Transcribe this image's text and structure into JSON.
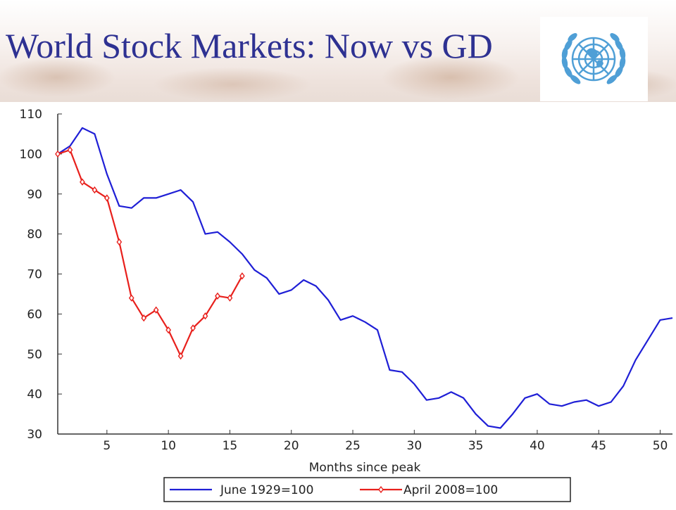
{
  "slide": {
    "title": "World Stock Markets: Now vs GD"
  },
  "logo": {
    "icon": "un-emblem-icon",
    "color": "#4f9fd6"
  },
  "chart_data": {
    "type": "line",
    "title": "",
    "xlabel": "Months since peak",
    "ylabel": "",
    "xlim": [
      1,
      51
    ],
    "ylim": [
      30,
      110
    ],
    "xticks": [
      5,
      10,
      15,
      20,
      25,
      30,
      35,
      40,
      45,
      50
    ],
    "yticks": [
      30,
      40,
      50,
      60,
      70,
      80,
      90,
      100,
      110
    ],
    "grid": false,
    "legend_position": "bottom",
    "series": [
      {
        "name": "June 1929=100",
        "color": "#1f1fd6",
        "marker": "none",
        "x": [
          1,
          2,
          3,
          4,
          5,
          6,
          7,
          8,
          9,
          10,
          11,
          12,
          13,
          14,
          15,
          16,
          17,
          18,
          19,
          20,
          21,
          22,
          23,
          24,
          25,
          26,
          27,
          28,
          29,
          30,
          31,
          32,
          33,
          34,
          35,
          36,
          37,
          38,
          39,
          40,
          41,
          42,
          43,
          44,
          45,
          46,
          47,
          48,
          49,
          50,
          51
        ],
        "values": [
          100,
          102,
          106.5,
          105,
          95,
          87,
          86.5,
          89,
          89,
          90,
          91,
          88,
          80,
          80.5,
          78,
          75,
          71,
          69,
          65,
          66,
          68.5,
          67,
          63.5,
          58.5,
          59.5,
          58,
          56,
          46,
          45.5,
          42.5,
          38.5,
          39,
          40.5,
          39,
          35,
          32,
          31.5,
          35,
          39,
          40,
          37.5,
          37,
          38,
          38.5,
          37,
          38,
          42,
          48.5,
          53.5,
          58.5,
          59
        ]
      },
      {
        "name": "April 2008=100",
        "color": "#e8201c",
        "marker": "diamond",
        "x": [
          1,
          2,
          3,
          4,
          5,
          6,
          7,
          8,
          9,
          10,
          11,
          12,
          13,
          14,
          15,
          16
        ],
        "values": [
          100,
          101,
          93,
          91,
          89,
          78,
          64,
          59,
          61,
          56,
          49.5,
          56.5,
          59.5,
          64.5,
          64,
          69.5
        ]
      }
    ]
  }
}
